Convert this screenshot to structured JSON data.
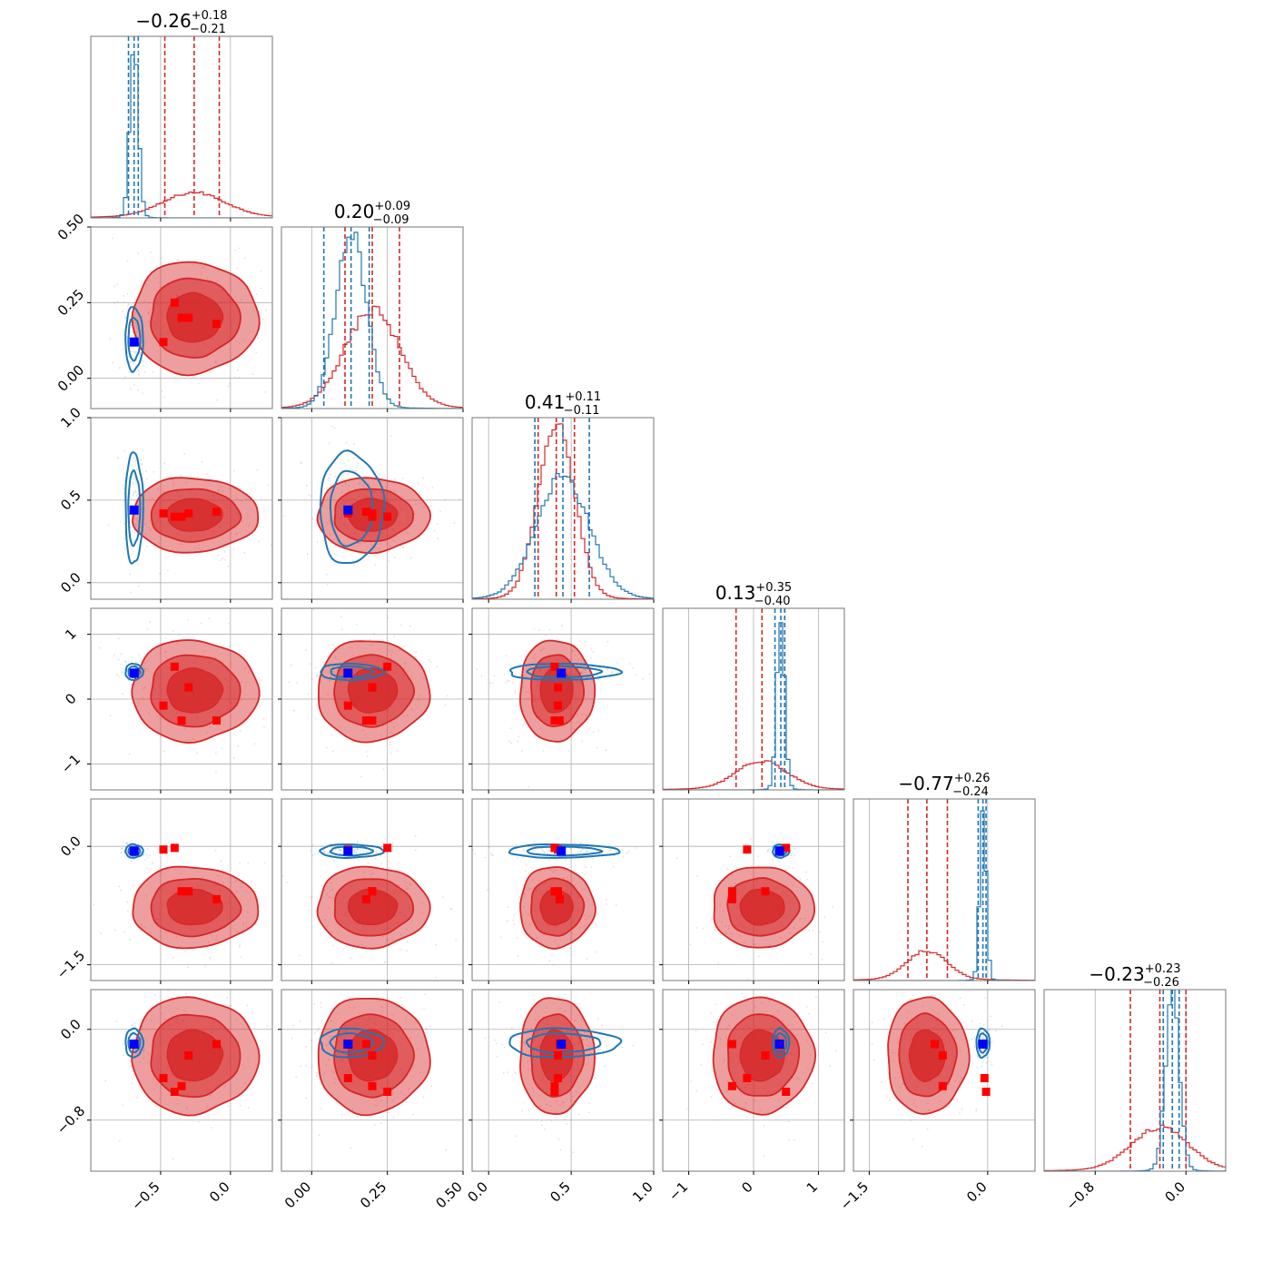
{
  "chart_data": {
    "type": "corner",
    "series": [
      {
        "name": "",
        "color": "#1f77b4"
      },
      {
        "name": "",
        "color": "#d62728"
      }
    ],
    "params": [
      {
        "range": [
          -1.0,
          0.3
        ],
        "ticks": [
          -0.5,
          0.0
        ],
        "tick_labels": [
          "−0.5",
          "0.0"
        ],
        "title": {
          "value": "−0.26",
          "plus": "+0.18",
          "minus": "−0.21"
        },
        "blue": {
          "mu": -0.69,
          "sd": 0.03,
          "q": [
            -0.73,
            -0.69,
            -0.66
          ]
        },
        "red": {
          "mu": -0.26,
          "sd": 0.22,
          "q": [
            -0.47,
            -0.26,
            -0.08
          ]
        }
      },
      {
        "range": [
          -0.1,
          0.5
        ],
        "ticks": [
          0.0,
          0.25,
          0.5
        ],
        "tick_labels": [
          "0.00",
          "0.25",
          "0.50"
        ],
        "title": {
          "value": "0.20",
          "plus": "+0.09",
          "minus": "−0.09"
        },
        "blue": {
          "mu": 0.13,
          "sd": 0.05,
          "q": [
            0.04,
            0.13,
            0.19
          ]
        },
        "red": {
          "mu": 0.2,
          "sd": 0.09,
          "q": [
            0.11,
            0.2,
            0.29
          ]
        }
      },
      {
        "range": [
          -0.1,
          1.0
        ],
        "ticks": [
          0.0,
          0.5,
          1.0
        ],
        "tick_labels": [
          "0.0",
          "0.5",
          "1.0"
        ],
        "title": {
          "value": "0.41",
          "plus": "+0.11",
          "minus": "−0.11"
        },
        "blue": {
          "mu": 0.45,
          "sd": 0.16,
          "q": [
            0.28,
            0.45,
            0.61
          ]
        },
        "red": {
          "mu": 0.41,
          "sd": 0.11,
          "q": [
            0.3,
            0.41,
            0.52
          ]
        }
      },
      {
        "range": [
          -1.4,
          1.4
        ],
        "ticks": [
          -1,
          0,
          1
        ],
        "tick_labels": [
          "−1",
          "0",
          "1"
        ],
        "title": {
          "value": "0.13",
          "plus": "+0.35",
          "minus": "−0.40"
        },
        "blue": {
          "mu": 0.42,
          "sd": 0.06,
          "q": [
            0.33,
            0.42,
            0.48
          ]
        },
        "red": {
          "mu": 0.13,
          "sd": 0.38,
          "q": [
            -0.27,
            0.13,
            0.48
          ]
        }
      },
      {
        "range": [
          -1.7,
          0.6
        ],
        "ticks": [
          -1.5,
          0.0
        ],
        "tick_labels": [
          "−1.5",
          "0.0"
        ],
        "title": {
          "value": "−0.77",
          "plus": "+0.26",
          "minus": "−0.24"
        },
        "blue": {
          "mu": -0.06,
          "sd": 0.04,
          "q": [
            -0.12,
            -0.06,
            -0.02
          ]
        },
        "red": {
          "mu": -0.77,
          "sd": 0.25,
          "q": [
            -1.01,
            -0.77,
            -0.51
          ]
        }
      },
      {
        "range": [
          -1.25,
          0.35
        ],
        "ticks": [
          -0.8,
          0.0
        ],
        "tick_labels": [
          "−0.8",
          "0.0"
        ],
        "title": {
          "value": "−0.23",
          "plus": "+0.23",
          "minus": "−0.26"
        },
        "blue": {
          "mu": -0.12,
          "sd": 0.06,
          "q": [
            -0.2,
            -0.12,
            -0.06
          ]
        },
        "red": {
          "mu": -0.23,
          "sd": 0.25,
          "q": [
            -0.49,
            -0.23,
            -0.0
          ]
        }
      }
    ],
    "markers": {
      "blue": [
        -0.69,
        0.12,
        0.44,
        0.4,
        -0.06,
        -0.13
      ],
      "red": [
        [
          -0.48,
          0.12,
          0.42,
          -0.1,
          -0.04,
          -0.43
        ],
        [
          -0.4,
          0.25,
          0.4,
          0.5,
          -0.02,
          -0.55
        ],
        [
          -0.3,
          0.2,
          0.42,
          0.18,
          -0.57,
          -0.23
        ],
        [
          -0.1,
          0.18,
          0.43,
          -0.33,
          -0.67,
          -0.13
        ],
        [
          -0.35,
          0.2,
          0.4,
          -0.33,
          -0.57,
          -0.5
        ]
      ]
    }
  }
}
